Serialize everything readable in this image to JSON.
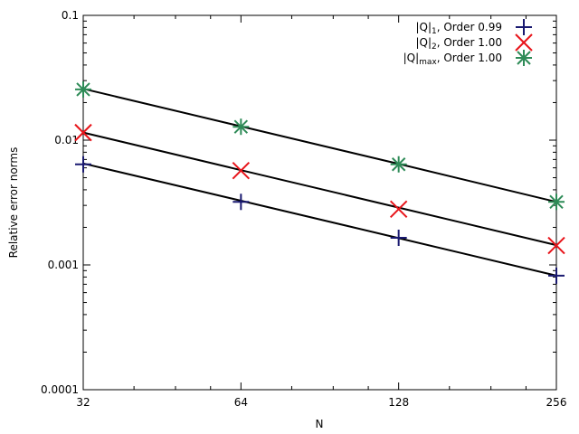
{
  "chart_data": {
    "type": "scatter",
    "title": "",
    "xlabel": "N",
    "ylabel": "Relative error norms",
    "x_scale": "log2",
    "y_scale": "log10",
    "xlim": [
      32,
      256
    ],
    "ylim": [
      0.0001,
      0.1
    ],
    "x_ticks": [
      32,
      64,
      128,
      256
    ],
    "x_tick_labels": [
      "32",
      "64",
      "128",
      "256"
    ],
    "y_ticks": [
      0.0001,
      0.001,
      0.01,
      0.1
    ],
    "y_tick_labels": [
      "0.0001",
      "0.001",
      "0.01",
      "0.1"
    ],
    "grid": false,
    "legend_position": "top-right",
    "x": [
      32,
      64,
      128,
      256
    ],
    "series": [
      {
        "name_main": "|Q|",
        "name_sub": "1",
        "name_tail": ", Order 0.99",
        "marker": "plus",
        "color": "#191970",
        "values": [
          0.0064,
          0.0032,
          0.00165,
          0.00082
        ],
        "fit": [
          0.0065,
          0.00327,
          0.00164,
          0.00082
        ]
      },
      {
        "name_main": "|Q|",
        "name_sub": "2",
        "name_tail": ", Order 1.00",
        "marker": "x",
        "color": "#e8141a",
        "values": [
          0.0115,
          0.0057,
          0.0028,
          0.00143
        ],
        "fit": [
          0.0115,
          0.00575,
          0.00288,
          0.00144
        ]
      },
      {
        "name_main": "|Q|",
        "name_sub": "max",
        "name_tail": ", Order 1.00",
        "marker": "star",
        "color": "#2e8b57",
        "values": [
          0.0255,
          0.0128,
          0.0064,
          0.0032
        ],
        "fit": [
          0.0258,
          0.0129,
          0.00645,
          0.0032
        ]
      }
    ]
  }
}
